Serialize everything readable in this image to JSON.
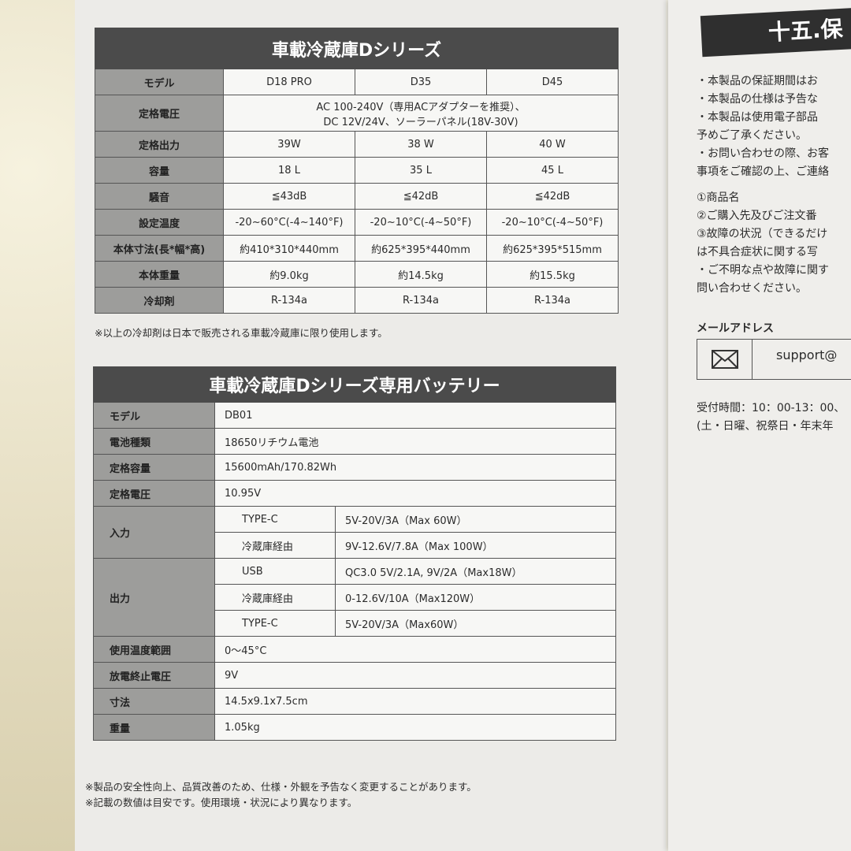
{
  "fridge_table": {
    "title": "車載冷蔵庫Dシリーズ",
    "rows": [
      {
        "label": "モデル",
        "values": [
          "D18 PRO",
          "D35",
          "D45"
        ]
      },
      {
        "label": "定格電圧",
        "merged": [
          "AC 100-240V（専用ACアダプターを推奨）、",
          "DC 12V/24V、ソーラーパネル(18V-30V)"
        ]
      },
      {
        "label": "定格出力",
        "values": [
          "39W",
          "38 W",
          "40 W"
        ]
      },
      {
        "label": "容量",
        "values": [
          "18 L",
          "35 L",
          "45 L"
        ]
      },
      {
        "label": "騒音",
        "values": [
          "≦43dB",
          "≦42dB",
          "≦42dB"
        ]
      },
      {
        "label": "設定温度",
        "values": [
          "-20~60°C(-4~140°F)",
          "-20~10°C(-4~50°F)",
          "-20~10°C(-4~50°F)"
        ]
      },
      {
        "label": "本体寸法(長*幅*高)",
        "values": [
          "約410*310*440mm",
          "約625*395*440mm",
          "約625*395*515mm"
        ]
      },
      {
        "label": "本体重量",
        "values": [
          "約9.0kg",
          "約14.5kg",
          "約15.5kg"
        ]
      },
      {
        "label": "冷却剤",
        "values": [
          "R-134a",
          "R-134a",
          "R-134a"
        ]
      }
    ],
    "note": "※以上の冷却剤は日本で販売される車載冷蔵庫に限り使用します。"
  },
  "battery_table": {
    "title": "車載冷蔵庫Dシリーズ専用バッテリー",
    "model": {
      "label": "モデル",
      "value": "DB01"
    },
    "cell": {
      "label": "電池種類",
      "value": "18650リチウム電池"
    },
    "capacity": {
      "label": "定格容量",
      "value": "15600mAh/170.82Wh"
    },
    "voltage": {
      "label": "定格電圧",
      "value": "10.95V"
    },
    "input": {
      "label": "入力",
      "rows": [
        {
          "port": "TYPE-C",
          "value": "5V-20V/3A（Max 60W）"
        },
        {
          "port": "冷蔵庫経由",
          "value": "9V-12.6V/7.8A（Max 100W）"
        }
      ]
    },
    "output": {
      "label": "出力",
      "rows": [
        {
          "port": "USB",
          "value": "QC3.0 5V/2.1A, 9V/2A（Max18W）"
        },
        {
          "port": "冷蔵庫経由",
          "value": "0-12.6V/10A（Max120W）"
        },
        {
          "port": "TYPE-C",
          "value": "5V-20V/3A（Max60W）"
        }
      ]
    },
    "temp": {
      "label": "使用温度範囲",
      "value": "0〜45°C"
    },
    "cutoff": {
      "label": "放電終止電圧",
      "value": "9V"
    },
    "size": {
      "label": "寸法",
      "value": "14.5x9.1x7.5cm"
    },
    "weight": {
      "label": "重量",
      "value": "1.05kg"
    },
    "notes": [
      "※製品の安全性向上、品質改善のため、仕様・外観を予告なく変更することがあります。",
      "※記載の数値は目安です。使用環境・状況により異なります。"
    ]
  },
  "right_page": {
    "title": "十五.保",
    "lines": [
      "・本製品の保証期間はお",
      "・本製品の仕様は予告な",
      "・本製品は使用電子部品",
      "予めご了承ください。",
      "・お問い合わせの際、お客",
      "事項をご確認の上、ご連絡",
      "①商品名",
      "②ご購入先及びご注文番",
      "③故障の状況（できるだけ",
      "は不具合症状に関する写",
      "・ご不明な点や故障に関す",
      "問い合わせください。"
    ],
    "email_label": "メールアドレス",
    "email": "support@",
    "hours": [
      "受付時間：10：00-13：00、",
      "(土・日曜、祝祭日・年末年"
    ]
  }
}
